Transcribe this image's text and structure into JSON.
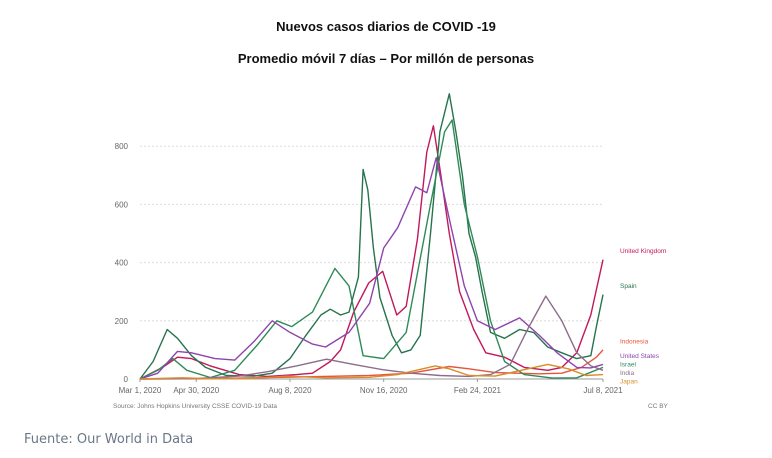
{
  "title": "Nuevos casos diarios de COVID -19",
  "subtitle": "Promedio móvil 7 días – Por millón de personas",
  "source_note": "Source: Johns Hopkins University CSSE COVID-19 Data",
  "license": "CC BY",
  "footer": "Fuente: Our World in Data",
  "chart_data": {
    "type": "line",
    "x_type": "date",
    "x_ticks": [
      "2020-03-01",
      "2020-04-30",
      "2020-08-08",
      "2020-11-16",
      "2021-02-24",
      "2021-07-08"
    ],
    "x_tick_labels": [
      "Mar 1, 2020",
      "Apr 30, 2020",
      "Aug 8, 2020",
      "Nov 16, 2020",
      "Feb 24, 2021",
      "Jul 8, 2021"
    ],
    "xlim": [
      "2020-03-01",
      "2021-07-08"
    ],
    "ylim": [
      0,
      1000
    ],
    "y_ticks": [
      0,
      200,
      400,
      600,
      800
    ],
    "grid": true,
    "legend": "right-end labels",
    "series": [
      {
        "name": "United Kingdom",
        "color": "#c2185b",
        "points": [
          [
            "2020-03-01",
            0
          ],
          [
            "2020-03-25",
            40
          ],
          [
            "2020-04-10",
            75
          ],
          [
            "2020-04-25",
            70
          ],
          [
            "2020-05-15",
            45
          ],
          [
            "2020-06-15",
            15
          ],
          [
            "2020-07-15",
            9
          ],
          [
            "2020-08-15",
            15
          ],
          [
            "2020-09-01",
            20
          ],
          [
            "2020-09-20",
            60
          ],
          [
            "2020-10-01",
            100
          ],
          [
            "2020-10-15",
            230
          ],
          [
            "2020-10-31",
            330
          ],
          [
            "2020-11-15",
            370
          ],
          [
            "2020-11-30",
            220
          ],
          [
            "2020-12-10",
            250
          ],
          [
            "2020-12-22",
            480
          ],
          [
            "2021-01-01",
            780
          ],
          [
            "2021-01-08",
            870
          ],
          [
            "2021-01-16",
            700
          ],
          [
            "2021-01-25",
            500
          ],
          [
            "2021-02-05",
            300
          ],
          [
            "2021-02-20",
            170
          ],
          [
            "2021-03-05",
            90
          ],
          [
            "2021-03-25",
            75
          ],
          [
            "2021-04-15",
            40
          ],
          [
            "2021-05-10",
            30
          ],
          [
            "2021-05-25",
            40
          ],
          [
            "2021-06-10",
            90
          ],
          [
            "2021-06-25",
            220
          ],
          [
            "2021-07-08",
            410
          ]
        ]
      },
      {
        "name": "Spain",
        "color": "#26734d",
        "points": [
          [
            "2020-03-01",
            0
          ],
          [
            "2020-03-15",
            60
          ],
          [
            "2020-03-30",
            170
          ],
          [
            "2020-04-10",
            140
          ],
          [
            "2020-04-25",
            80
          ],
          [
            "2020-05-10",
            40
          ],
          [
            "2020-06-01",
            12
          ],
          [
            "2020-07-01",
            10
          ],
          [
            "2020-07-20",
            20
          ],
          [
            "2020-08-08",
            70
          ],
          [
            "2020-08-25",
            150
          ],
          [
            "2020-09-10",
            220
          ],
          [
            "2020-09-20",
            240
          ],
          [
            "2020-10-01",
            220
          ],
          [
            "2020-10-10",
            230
          ],
          [
            "2020-10-20",
            350
          ],
          [
            "2020-10-25",
            720
          ],
          [
            "2020-10-30",
            650
          ],
          [
            "2020-11-05",
            450
          ],
          [
            "2020-11-12",
            280
          ],
          [
            "2020-11-25",
            150
          ],
          [
            "2020-12-05",
            90
          ],
          [
            "2020-12-15",
            100
          ],
          [
            "2020-12-25",
            150
          ],
          [
            "2021-01-05",
            500
          ],
          [
            "2021-01-15",
            850
          ],
          [
            "2021-01-25",
            980
          ],
          [
            "2021-02-01",
            850
          ],
          [
            "2021-02-08",
            700
          ],
          [
            "2021-02-15",
            500
          ],
          [
            "2021-02-22",
            420
          ],
          [
            "2021-03-01",
            300
          ],
          [
            "2021-03-10",
            160
          ],
          [
            "2021-03-25",
            140
          ],
          [
            "2021-04-10",
            170
          ],
          [
            "2021-04-25",
            160
          ],
          [
            "2021-05-10",
            110
          ],
          [
            "2021-05-25",
            90
          ],
          [
            "2021-06-10",
            70
          ],
          [
            "2021-06-25",
            80
          ],
          [
            "2021-07-01",
            180
          ],
          [
            "2021-07-08",
            290
          ]
        ]
      },
      {
        "name": "Indonesia",
        "color": "#e4573f",
        "points": [
          [
            "2020-03-01",
            0
          ],
          [
            "2020-05-01",
            1
          ],
          [
            "2020-07-01",
            4
          ],
          [
            "2020-09-01",
            8
          ],
          [
            "2020-11-01",
            12
          ],
          [
            "2020-12-15",
            20
          ],
          [
            "2021-01-25",
            43
          ],
          [
            "2021-02-15",
            35
          ],
          [
            "2021-03-15",
            22
          ],
          [
            "2021-05-01",
            18
          ],
          [
            "2021-05-25",
            20
          ],
          [
            "2021-06-15",
            40
          ],
          [
            "2021-07-01",
            75
          ],
          [
            "2021-07-08",
            100
          ]
        ]
      },
      {
        "name": "Israel",
        "color": "#2e8b57",
        "points": [
          [
            "2020-03-01",
            0
          ],
          [
            "2020-03-20",
            30
          ],
          [
            "2020-04-05",
            70
          ],
          [
            "2020-04-20",
            30
          ],
          [
            "2020-05-15",
            5
          ],
          [
            "2020-06-10",
            30
          ],
          [
            "2020-07-05",
            120
          ],
          [
            "2020-07-25",
            200
          ],
          [
            "2020-08-10",
            180
          ],
          [
            "2020-09-01",
            230
          ],
          [
            "2020-09-25",
            380
          ],
          [
            "2020-10-10",
            320
          ],
          [
            "2020-10-25",
            80
          ],
          [
            "2020-11-16",
            70
          ],
          [
            "2020-12-10",
            160
          ],
          [
            "2021-01-05",
            600
          ],
          [
            "2021-01-20",
            850
          ],
          [
            "2021-01-28",
            890
          ],
          [
            "2021-02-10",
            600
          ],
          [
            "2021-02-24",
            420
          ],
          [
            "2021-03-10",
            200
          ],
          [
            "2021-03-25",
            60
          ],
          [
            "2021-04-15",
            15
          ],
          [
            "2021-05-15",
            3
          ],
          [
            "2021-06-10",
            4
          ],
          [
            "2021-07-08",
            40
          ]
        ]
      },
      {
        "name": "United States",
        "color": "#8e44ad",
        "points": [
          [
            "2020-03-01",
            0
          ],
          [
            "2020-03-20",
            20
          ],
          [
            "2020-04-10",
            95
          ],
          [
            "2020-04-25",
            90
          ],
          [
            "2020-05-20",
            70
          ],
          [
            "2020-06-10",
            65
          ],
          [
            "2020-07-01",
            130
          ],
          [
            "2020-07-20",
            200
          ],
          [
            "2020-08-08",
            160
          ],
          [
            "2020-09-01",
            120
          ],
          [
            "2020-09-15",
            110
          ],
          [
            "2020-10-10",
            160
          ],
          [
            "2020-11-01",
            260
          ],
          [
            "2020-11-16",
            450
          ],
          [
            "2020-12-01",
            520
          ],
          [
            "2020-12-20",
            660
          ],
          [
            "2021-01-01",
            640
          ],
          [
            "2021-01-11",
            760
          ],
          [
            "2021-01-25",
            550
          ],
          [
            "2021-02-10",
            320
          ],
          [
            "2021-02-24",
            200
          ],
          [
            "2021-03-15",
            170
          ],
          [
            "2021-04-10",
            210
          ],
          [
            "2021-05-01",
            150
          ],
          [
            "2021-05-20",
            90
          ],
          [
            "2021-06-10",
            40
          ],
          [
            "2021-06-25",
            38
          ],
          [
            "2021-07-08",
            50
          ]
        ]
      },
      {
        "name": "India",
        "color": "#8e6c8a",
        "points": [
          [
            "2020-03-01",
            0
          ],
          [
            "2020-05-01",
            2
          ],
          [
            "2020-06-15",
            10
          ],
          [
            "2020-07-15",
            25
          ],
          [
            "2020-08-15",
            45
          ],
          [
            "2020-09-16",
            68
          ],
          [
            "2020-10-15",
            50
          ],
          [
            "2020-11-15",
            32
          ],
          [
            "2020-12-15",
            20
          ],
          [
            "2021-01-15",
            12
          ],
          [
            "2021-02-15",
            9
          ],
          [
            "2021-03-10",
            15
          ],
          [
            "2021-03-31",
            50
          ],
          [
            "2021-04-20",
            180
          ],
          [
            "2021-05-08",
            285
          ],
          [
            "2021-05-25",
            200
          ],
          [
            "2021-06-10",
            90
          ],
          [
            "2021-06-25",
            45
          ],
          [
            "2021-07-08",
            30
          ]
        ]
      },
      {
        "name": "Japan",
        "color": "#d98c2b",
        "points": [
          [
            "2020-03-01",
            0
          ],
          [
            "2020-04-15",
            4
          ],
          [
            "2020-05-15",
            1
          ],
          [
            "2020-07-01",
            2
          ],
          [
            "2020-08-05",
            10
          ],
          [
            "2020-09-15",
            4
          ],
          [
            "2020-11-01",
            6
          ],
          [
            "2020-12-01",
            15
          ],
          [
            "2021-01-10",
            45
          ],
          [
            "2021-01-25",
            35
          ],
          [
            "2021-02-15",
            12
          ],
          [
            "2021-03-15",
            10
          ],
          [
            "2021-05-10",
            50
          ],
          [
            "2021-06-01",
            35
          ],
          [
            "2021-06-20",
            12
          ],
          [
            "2021-07-08",
            15
          ]
        ]
      }
    ]
  }
}
